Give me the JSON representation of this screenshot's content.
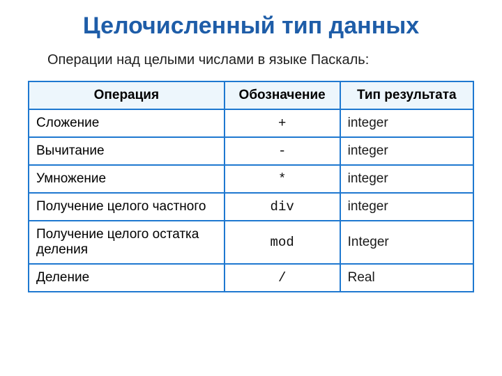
{
  "colors": {
    "title": "#1e5da8",
    "border": "#1e78d0",
    "header_bg": "#edf6fc",
    "text": "#202020"
  },
  "title": "Целочисленный тип данных",
  "subtitle": "Операции над целыми числами в языке Паскаль:",
  "table": {
    "columns": [
      "Операция",
      "Обозначение",
      "Тип результата"
    ],
    "col_widths_pct": [
      44,
      26,
      30
    ],
    "header_fontsize": 19,
    "cell_fontsize_op": 19,
    "cell_fontsize_sym": 24,
    "cell_fontsize_type": 22,
    "border_width": 2,
    "rows": [
      {
        "op": "Сложение",
        "sym": "+",
        "type": "integer"
      },
      {
        "op": "Вычитание",
        "sym": "-",
        "type": "integer"
      },
      {
        "op": "Умножение",
        "sym": "*",
        "type": "integer"
      },
      {
        "op": "Получение целого частного",
        "sym": "div",
        "type": "integer"
      },
      {
        "op": "Получение целого остатка деления",
        "sym": "mod",
        "type": "Integer"
      },
      {
        "op": "Деление",
        "sym": "/",
        "type": "Real"
      }
    ]
  }
}
